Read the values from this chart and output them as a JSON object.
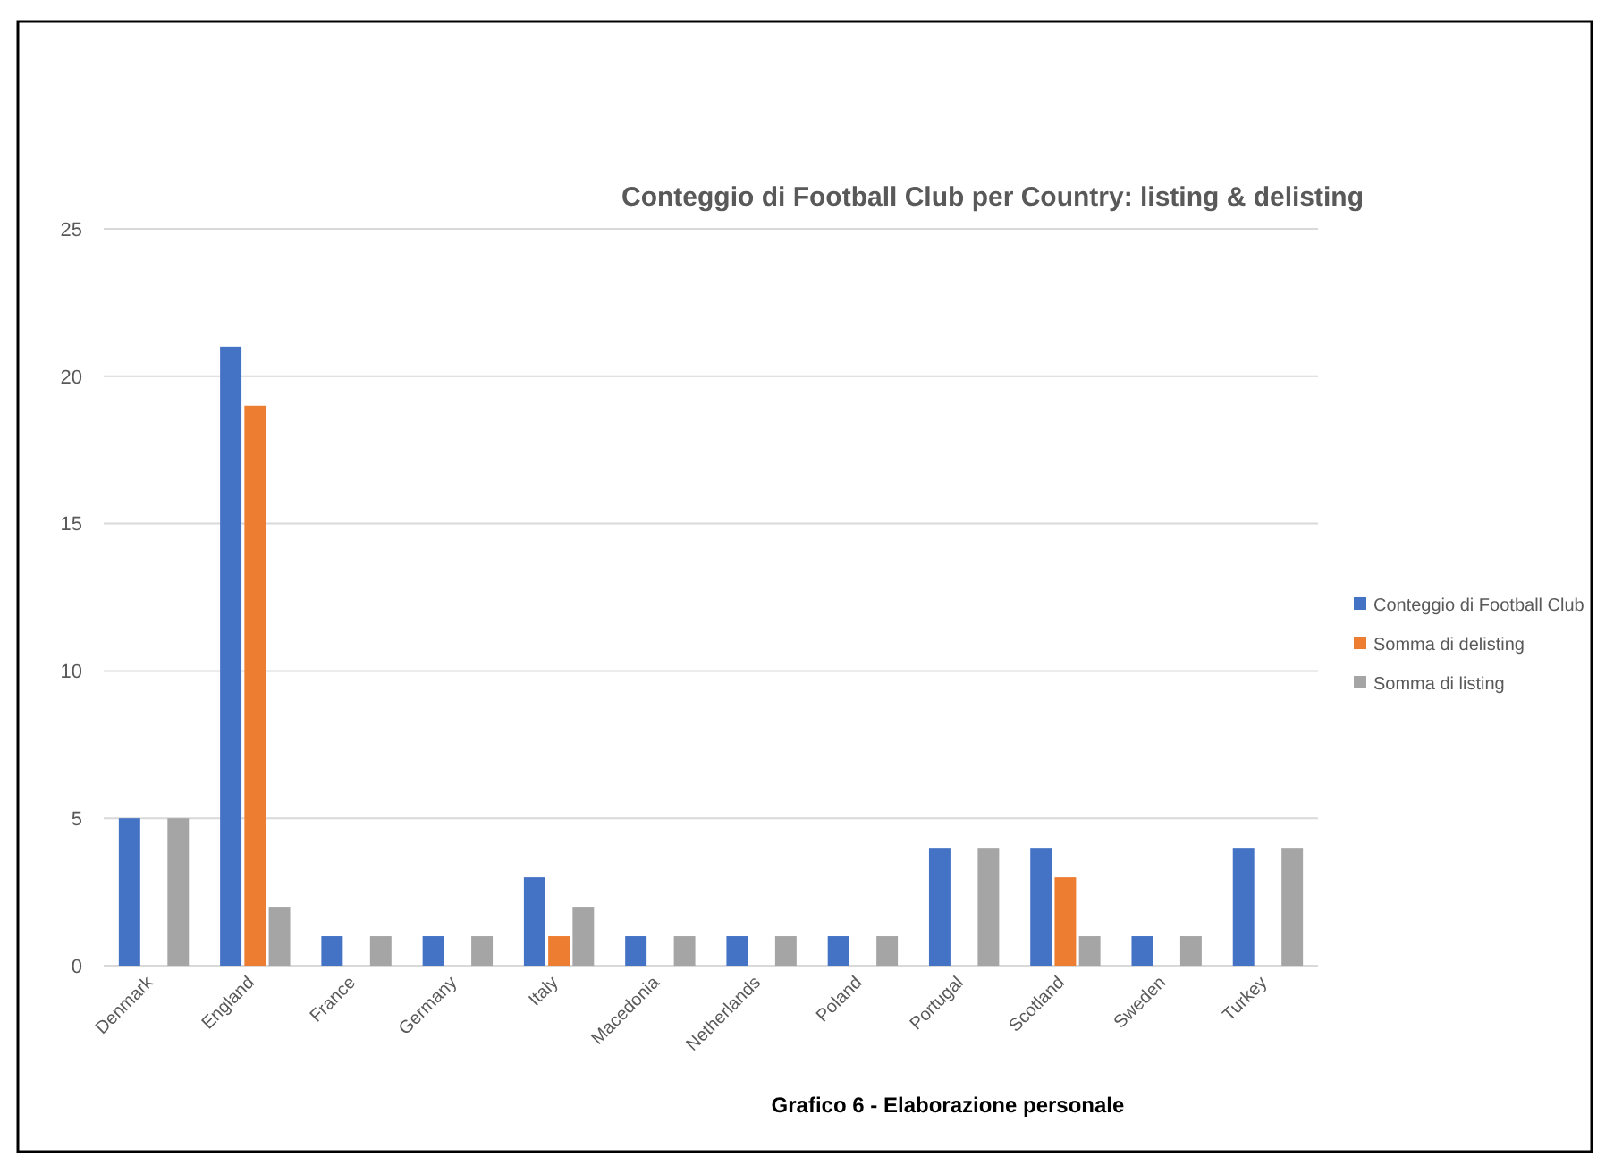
{
  "chart_data": {
    "type": "bar",
    "title": "Conteggio di Football Club per Country: listing & delisting",
    "categories": [
      "Denmark",
      "England",
      "France",
      "Germany",
      "Italy",
      "Macedonia",
      "Netherlands",
      "Poland",
      "Portugal",
      "Scotland",
      "Sweden",
      "Turkey"
    ],
    "series": [
      {
        "name": "Conteggio di Football Club",
        "color": "#4472c4",
        "values": [
          5,
          21,
          1,
          1,
          3,
          1,
          1,
          1,
          4,
          4,
          1,
          4
        ]
      },
      {
        "name": "Somma di delisting",
        "color": "#ed7d31",
        "values": [
          0,
          19,
          0,
          0,
          1,
          0,
          0,
          0,
          0,
          3,
          0,
          0
        ]
      },
      {
        "name": "Somma di listing",
        "color": "#a5a5a5",
        "values": [
          5,
          2,
          1,
          1,
          2,
          1,
          1,
          1,
          4,
          1,
          1,
          4
        ]
      }
    ],
    "ylim": [
      0,
      25
    ],
    "yticks": [
      0,
      5,
      10,
      15,
      20,
      25
    ],
    "grid": "y",
    "legend": "right",
    "annotations": [
      "Grafico 6 - Elaborazione personale"
    ]
  }
}
